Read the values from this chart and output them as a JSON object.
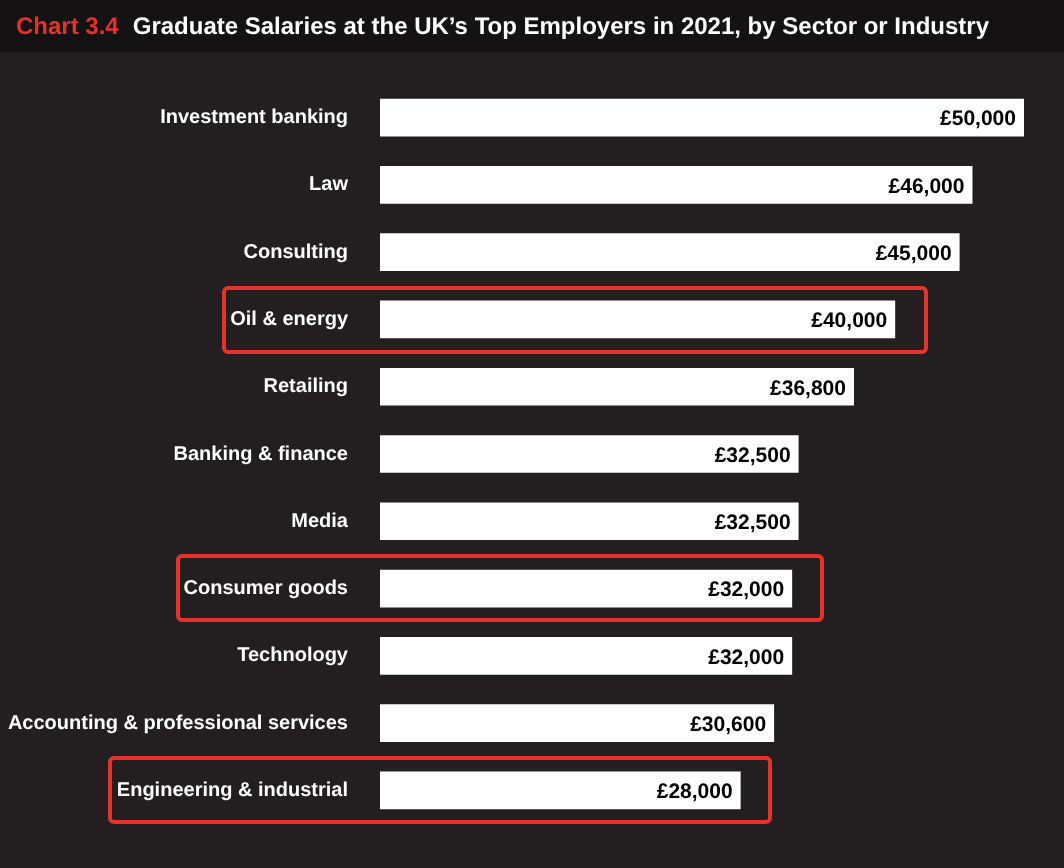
{
  "chart_data": {
    "type": "bar",
    "orientation": "horizontal",
    "title": "Chart 3.4 Graduate Salaries at the UK’s Top Employers in 2021, by Sector or Industry",
    "categories": [
      "Investment banking",
      "Law",
      "Consulting",
      "Oil & energy",
      "Retailing",
      "Banking & finance",
      "Media",
      "Consumer goods",
      "Technology",
      "Accounting & professional services",
      "Engineering & industrial"
    ],
    "values": [
      50000,
      46000,
      45000,
      40000,
      36800,
      32500,
      32500,
      32000,
      32000,
      30600,
      28000
    ],
    "value_labels": [
      "£50,000",
      "£46,000",
      "£45,000",
      "£40,000",
      "£36,800",
      "£32,500",
      "£32,500",
      "£32,000",
      "£32,000",
      "£30,600",
      "£28,000"
    ],
    "color": "#ffffff",
    "legend": false
  }
}
